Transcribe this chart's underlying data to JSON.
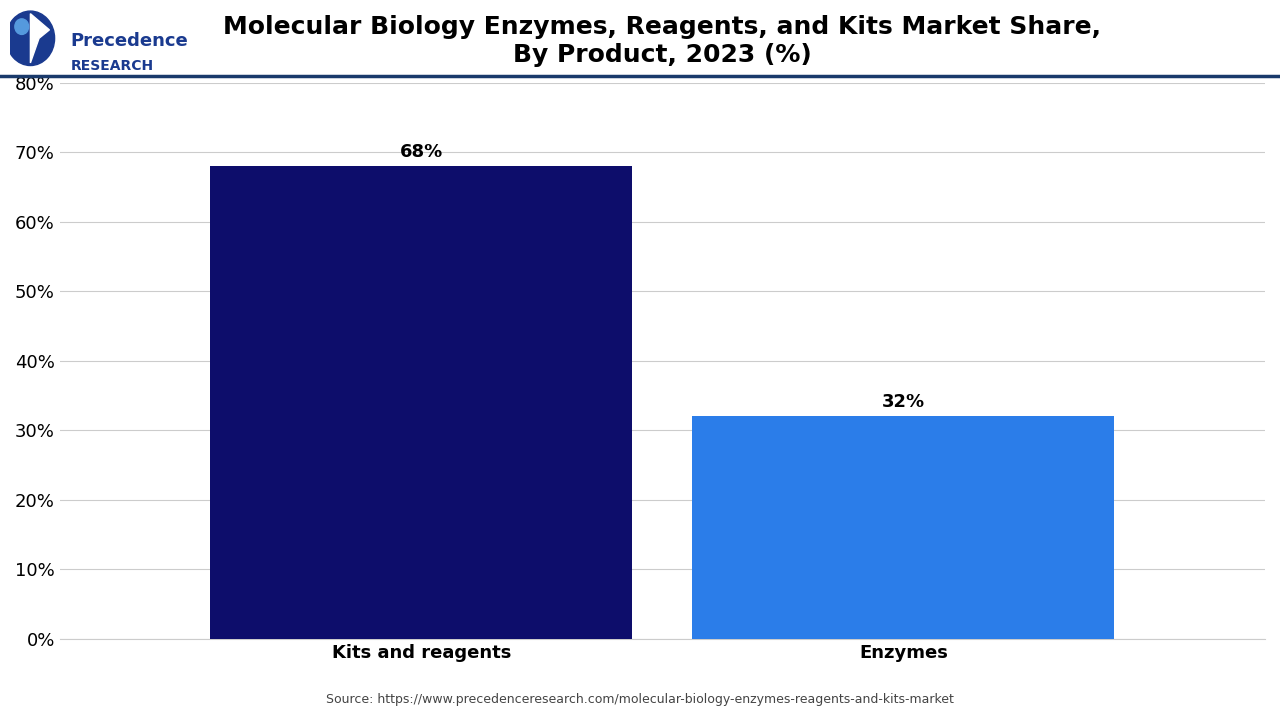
{
  "title": "Molecular Biology Enzymes, Reagents, and Kits Market Share,\nBy Product, 2023 (%)",
  "categories": [
    "Kits and reagents",
    "Enzymes"
  ],
  "values": [
    68,
    32
  ],
  "bar_colors": [
    "#0d0d6b",
    "#2b7de9"
  ],
  "bar_labels": [
    "68%",
    "32%"
  ],
  "ylim": [
    0,
    80
  ],
  "yticks": [
    0,
    10,
    20,
    30,
    40,
    50,
    60,
    70,
    80
  ],
  "ytick_labels": [
    "0%",
    "10%",
    "20%",
    "30%",
    "40%",
    "50%",
    "60%",
    "70%",
    "80%"
  ],
  "background_color": "#ffffff",
  "grid_color": "#cccccc",
  "title_fontsize": 18,
  "label_fontsize": 13,
  "tick_fontsize": 13,
  "bar_label_fontsize": 13,
  "source_text": "Source: https://www.precedenceresearch.com/molecular-biology-enzymes-reagents-and-kits-market",
  "logo_text_line1": "Precedence",
  "logo_text_line2": "RESEARCH",
  "top_border_color": "#1a3a6b",
  "bar_width": 0.35,
  "x_positions": [
    0.3,
    0.7
  ]
}
